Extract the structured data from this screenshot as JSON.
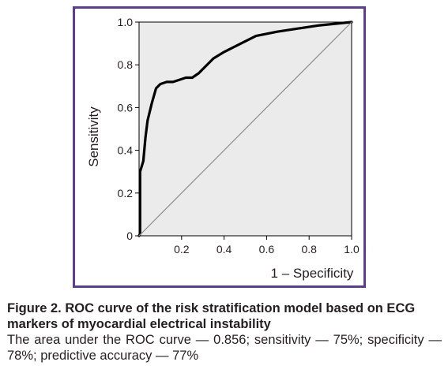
{
  "chart_data": {
    "type": "line",
    "xlabel": "1 – Specificity",
    "ylabel": "Sensitivity",
    "xlim": [
      0,
      1
    ],
    "ylim": [
      0,
      1
    ],
    "x_ticks": [
      0.2,
      0.4,
      0.6,
      0.8,
      1.0
    ],
    "x_tick_labels": [
      "0.2",
      "0.4",
      "0.6",
      "0.8",
      "1.0"
    ],
    "y_ticks": [
      0,
      0.2,
      0.4,
      0.6,
      0.8,
      1.0
    ],
    "y_tick_labels": [
      "0",
      "0.2",
      "0.4",
      "0.6",
      "0.8",
      "1.0"
    ],
    "grid": false,
    "plot_background": "#ebebeb",
    "series": [
      {
        "role": "roc-curve",
        "color": "#000000",
        "points": [
          [
            0,
            0
          ],
          [
            0.005,
            0.01
          ],
          [
            0.005,
            0.3
          ],
          [
            0.02,
            0.35
          ],
          [
            0.03,
            0.46
          ],
          [
            0.04,
            0.54
          ],
          [
            0.06,
            0.62
          ],
          [
            0.08,
            0.69
          ],
          [
            0.1,
            0.71
          ],
          [
            0.13,
            0.72
          ],
          [
            0.16,
            0.72
          ],
          [
            0.22,
            0.74
          ],
          [
            0.25,
            0.74
          ],
          [
            0.28,
            0.76
          ],
          [
            0.31,
            0.79
          ],
          [
            0.35,
            0.83
          ],
          [
            0.4,
            0.86
          ],
          [
            0.48,
            0.9
          ],
          [
            0.55,
            0.935
          ],
          [
            0.65,
            0.955
          ],
          [
            0.75,
            0.97
          ],
          [
            0.85,
            0.985
          ],
          [
            0.95,
            0.995
          ],
          [
            1,
            1
          ]
        ]
      },
      {
        "role": "reference-diagonal",
        "color": "#8c8c8c",
        "points": [
          [
            0,
            0
          ],
          [
            1,
            1
          ]
        ]
      }
    ]
  },
  "caption": {
    "title": "Figure 2. ROC curve of the risk stratification model based on ECG markers of myocardial electrical instability",
    "body": "The area under the ROC curve — 0.856; sensitivity — 75%; specificity — 78%; predictive accuracy — 77%"
  },
  "colors": {
    "frame": "#5b3f8a",
    "plot_border": "#000000",
    "text": "#231f20"
  }
}
